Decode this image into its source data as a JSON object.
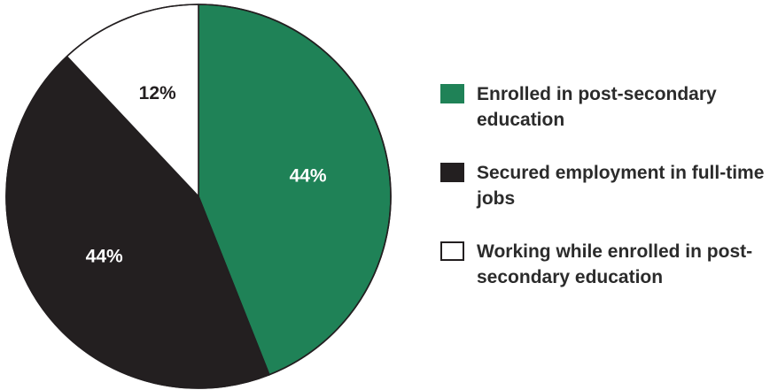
{
  "chart_data": {
    "type": "pie",
    "slices": [
      {
        "label": "Enrolled in post-secondary education",
        "value": 44,
        "display": "44%",
        "color": "#1f8257",
        "label_color": "#ffffff"
      },
      {
        "label": "Secured employment in full-time jobs",
        "value": 44,
        "display": "44%",
        "color": "#231f20",
        "label_color": "#ffffff"
      },
      {
        "label": "Working while enrolled in post-secondary education",
        "value": 12,
        "display": "12%",
        "color": "#ffffff",
        "label_color": "#231f20"
      }
    ],
    "start": "top",
    "direction": "clockwise",
    "stroke_color": "#231f20",
    "legend_position": "right"
  }
}
